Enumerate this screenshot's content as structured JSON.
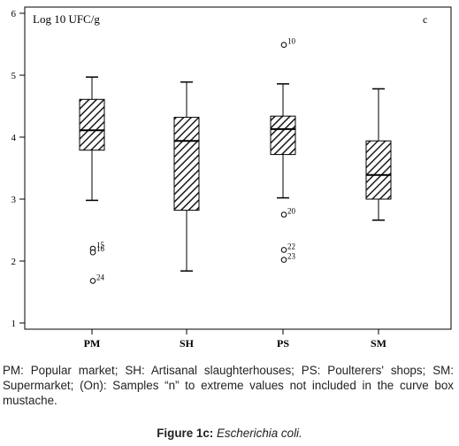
{
  "chart_data": {
    "type": "boxplot",
    "ylabel": "Log 10 UFC/g",
    "panel_label": "c",
    "ylim": [
      0.9,
      6.1
    ],
    "yticks": [
      1,
      2,
      3,
      4,
      5,
      6
    ],
    "categories": [
      "PM",
      "SH",
      "PS",
      "SM"
    ],
    "boxes": [
      {
        "category": "PM",
        "whisker_low": 2.98,
        "q1": 3.79,
        "median": 4.11,
        "q3": 4.61,
        "whisker_high": 4.97
      },
      {
        "category": "SH",
        "whisker_low": 1.84,
        "q1": 2.82,
        "median": 3.94,
        "q3": 4.32,
        "whisker_high": 4.89
      },
      {
        "category": "PS",
        "whisker_low": 3.02,
        "q1": 3.72,
        "median": 4.13,
        "q3": 4.34,
        "whisker_high": 4.86
      },
      {
        "category": "SM",
        "whisker_low": 2.66,
        "q1": 3.0,
        "median": 3.39,
        "q3": 3.94,
        "whisker_high": 4.78
      }
    ],
    "outliers": [
      {
        "category": "PM",
        "value": 2.2,
        "label": "15"
      },
      {
        "category": "PM",
        "value": 2.14,
        "label": "16"
      },
      {
        "category": "PM",
        "value": 1.68,
        "label": "24"
      },
      {
        "category": "PS",
        "value": 5.49,
        "label": "10"
      },
      {
        "category": "PS",
        "value": 2.75,
        "label": "20"
      },
      {
        "category": "PS",
        "value": 2.18,
        "label": "22"
      },
      {
        "category": "PS",
        "value": 2.02,
        "label": "23"
      }
    ],
    "box_fill": "diagonal-hatch",
    "grid": false,
    "legend": "none"
  },
  "caption": {
    "text": "PM: Popular market; SH: Artisanal slaughterhouses; PS: Poulterers' shops; SM: Supermarket; (On): Samples “n” to extreme values not included in the curve box mustache.",
    "figure_label": "Figure 1c:",
    "organism": "Escherichia coli."
  },
  "colors": {
    "axis": "#000000",
    "hatch": "#1a1a1a",
    "background": "#ffffff"
  }
}
